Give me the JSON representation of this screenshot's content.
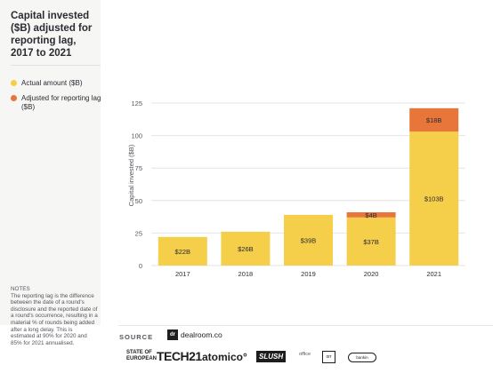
{
  "header": {
    "title": "Capital invested ($B) adjusted for reporting lag, 2017 to 2021"
  },
  "legend": [
    {
      "label": "Actual amount ($B)",
      "color": "#f5ce4a",
      "icon": "yellow-dot-icon"
    },
    {
      "label": "Adjusted for reporting lag ($B)",
      "color": "#e8763b",
      "icon": "orange-dot-icon"
    }
  ],
  "notes": {
    "title": "NOTES",
    "text": "The reporting lag is the difference between the date of a round's disclosure and the reported date of a round's occurrence, resulting in a material % of rounds being added after a long delay. This is estimated at 90% for 2020 and 85% for 2021 annualised."
  },
  "footer": {
    "source_label": "SOURCE",
    "source_name": "dealroom.co",
    "source_icon": "dr",
    "logos": {
      "soet": "STATE OF EUROPEAN",
      "tech21": "TECH21",
      "atomico": "atomico°",
      "slush": "SLUSH",
      "office": "office",
      "orrick": "orr",
      "barker": "bankin"
    }
  },
  "chart_data": {
    "type": "bar",
    "stacked": true,
    "categories": [
      "2017",
      "2018",
      "2019",
      "2020",
      "2021"
    ],
    "series": [
      {
        "name": "Actual amount ($B)",
        "color": "#f5ce4a",
        "values": [
          22,
          26,
          39,
          37,
          103
        ],
        "labels": [
          "$22B",
          "$26B",
          "$39B",
          "$37B",
          "$103B"
        ]
      },
      {
        "name": "Adjusted for reporting lag ($B)",
        "color": "#e8763b",
        "values": [
          0,
          0,
          0,
          4,
          18
        ],
        "labels": [
          "",
          "",
          "",
          "$4B",
          "$18B"
        ]
      }
    ],
    "ylabel": "Capital invested ($B)",
    "xlabel": "",
    "ylim": [
      0,
      125
    ],
    "yticks": [
      "0",
      "25",
      "50",
      "75",
      "100",
      "125"
    ],
    "grid": true
  }
}
